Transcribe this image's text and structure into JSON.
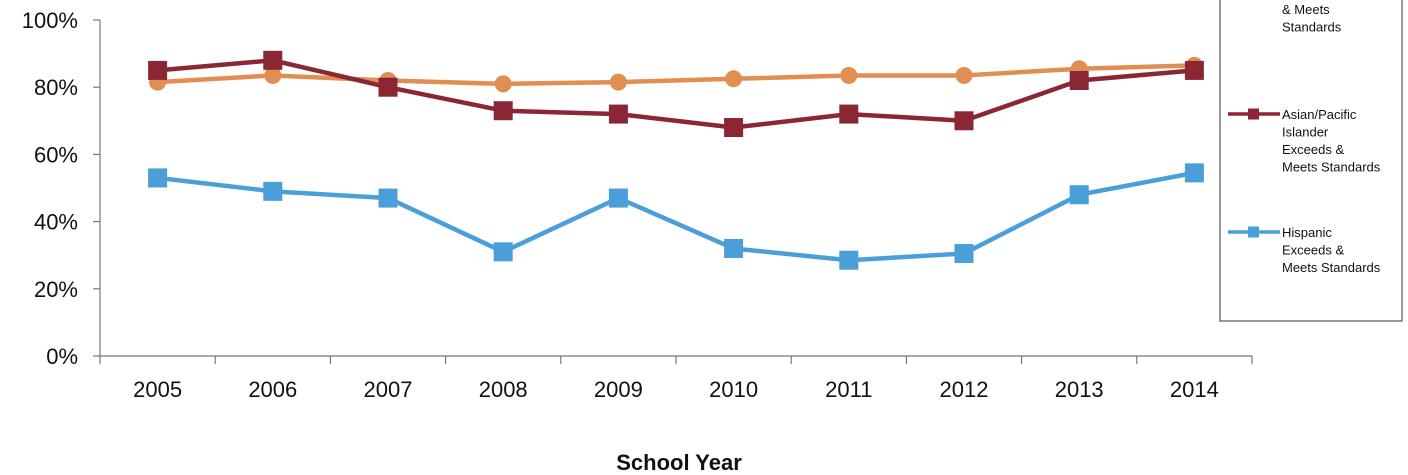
{
  "chart_data": {
    "type": "line",
    "title": "",
    "xlabel": "School Year",
    "ylabel": "",
    "categories": [
      "2005",
      "2006",
      "2007",
      "2008",
      "2009",
      "2010",
      "2011",
      "2012",
      "2013",
      "2014"
    ],
    "ylim": [
      0,
      100
    ],
    "yticks": [
      "0%",
      "20%",
      "40%",
      "60%",
      "80%",
      "100%"
    ],
    "grid": false,
    "legend_position": "right",
    "series": [
      {
        "name": "& Meets Standards",
        "name_lines": [
          "& Meets",
          "Standards"
        ],
        "color": "#E08E52",
        "marker": "circle",
        "values": [
          81.5,
          83.5,
          82,
          81,
          81.5,
          82.5,
          83.5,
          83.5,
          85.5,
          86.5
        ]
      },
      {
        "name": "Asian/Pacific Islander Exceeds & Meets Standards",
        "name_lines": [
          "Asian/Pacific",
          "Islander",
          "Exceeds &",
          "Meets Standards"
        ],
        "color": "#8B2635",
        "marker": "square",
        "values": [
          85,
          88,
          80,
          73,
          72,
          68,
          72,
          70,
          82,
          85
        ]
      },
      {
        "name": "Hispanic Exceeds & Meets Standards",
        "name_lines": [
          "Hispanic",
          "Exceeds &",
          "Meets Standards"
        ],
        "color": "#4A9FD8",
        "marker": "square",
        "values": [
          53,
          49,
          47,
          31,
          47,
          32,
          28.5,
          30.5,
          48,
          54.5
        ]
      }
    ]
  }
}
